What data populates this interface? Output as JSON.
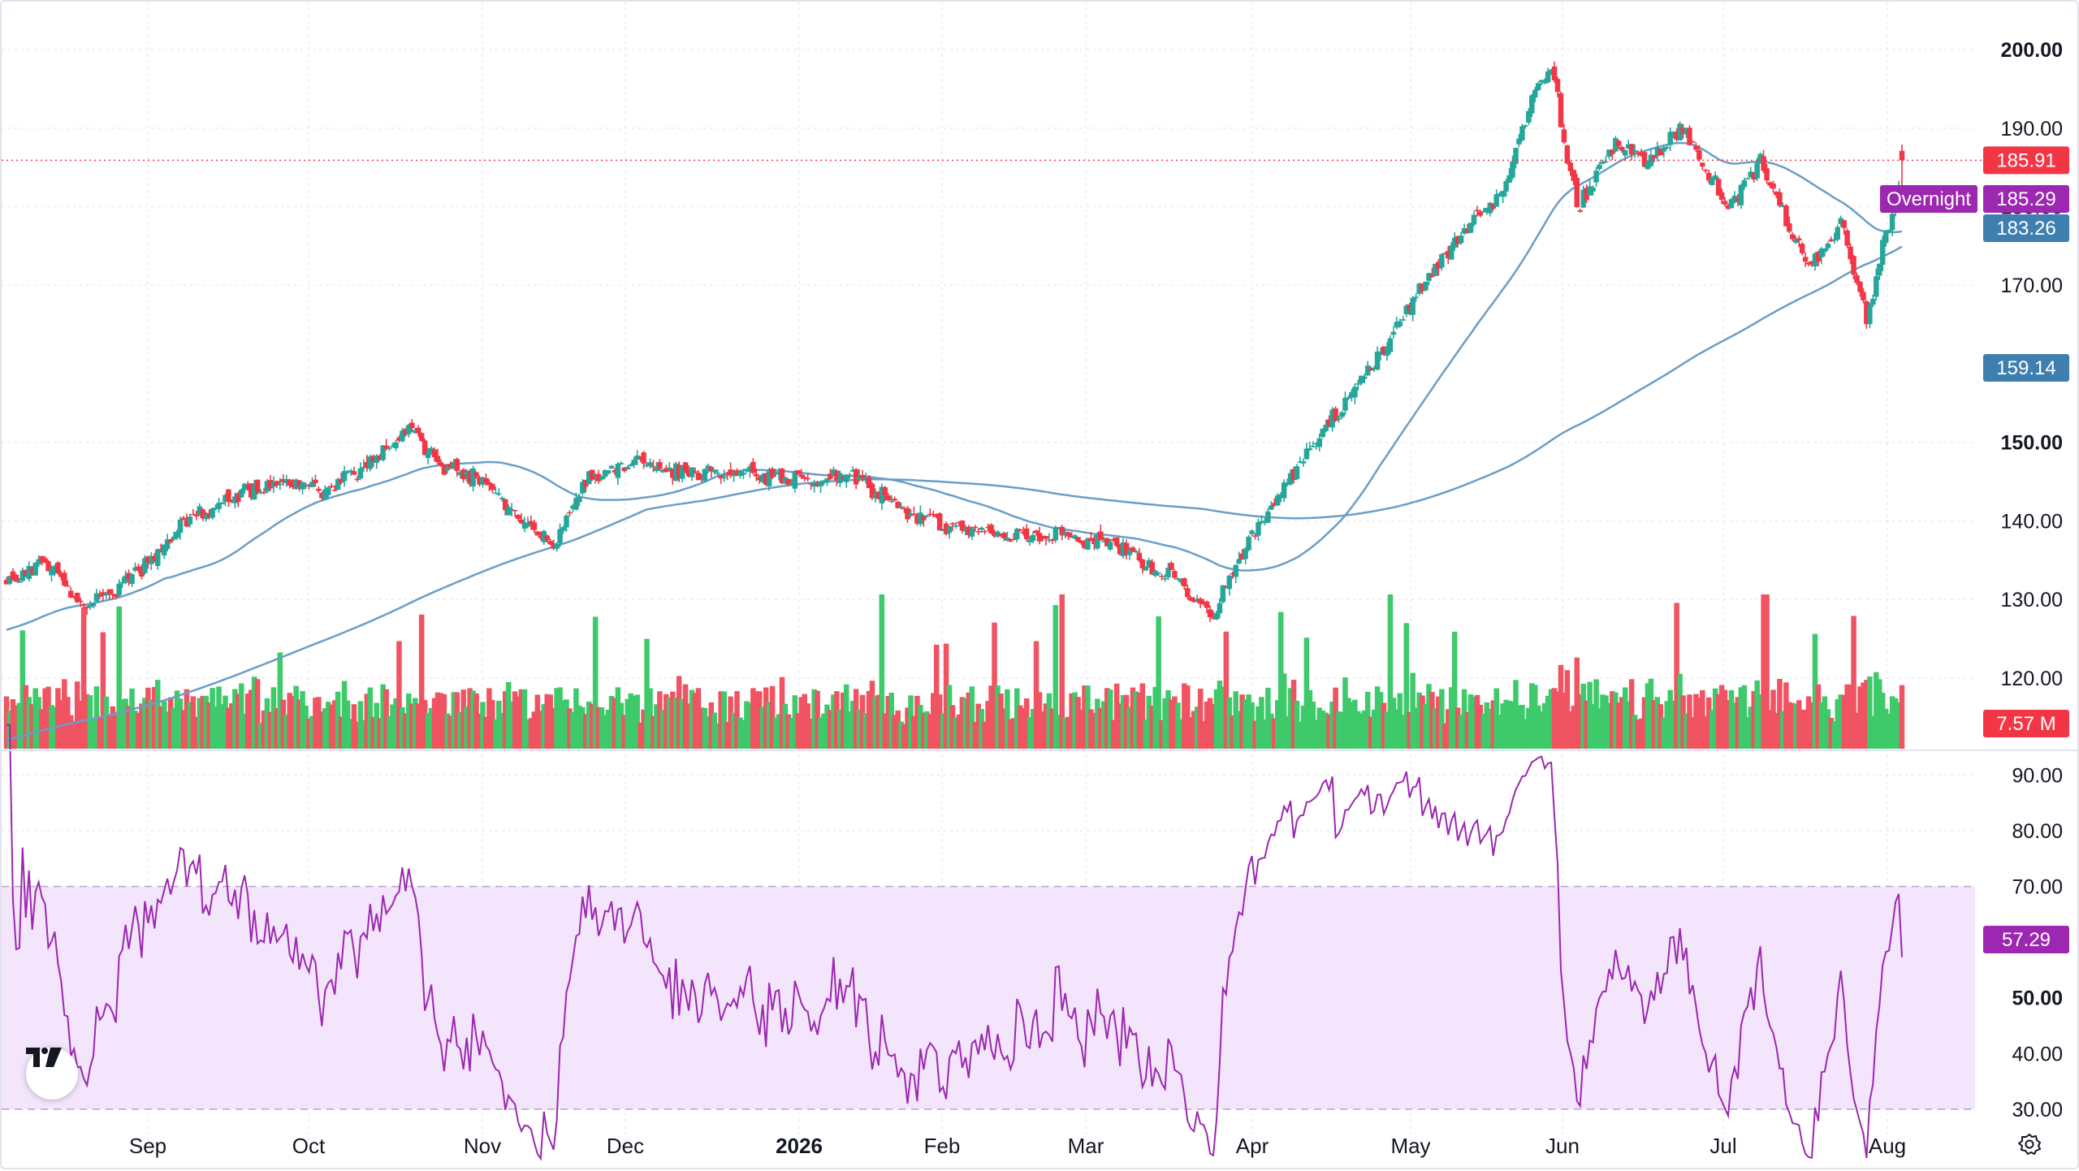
{
  "chart_data": [
    {
      "type": "candlestick",
      "title": "",
      "y_ticks": [
        "200.00",
        "190.00",
        "180.00",
        "170.00",
        "150.00",
        "140.00",
        "130.00",
        "120.00"
      ],
      "ylim": [
        111,
        203
      ],
      "x_labels": [
        "Sep",
        "Oct",
        "Nov",
        "Dec",
        "2026",
        "Feb",
        "Mar",
        "Apr",
        "May",
        "Jun",
        "Jul",
        "Aug"
      ],
      "overlays": [
        {
          "name": "MA50",
          "last": "183.26",
          "color": "#6a9ec7"
        },
        {
          "name": "MA200",
          "last": "159.14",
          "color": "#6a9ec7"
        }
      ],
      "last_price": "185.91",
      "overnight": {
        "label": "Overnight",
        "value": "185.29"
      },
      "volume_label": "7.57 M",
      "anchors": [
        [
          0,
          132
        ],
        [
          12,
          135
        ],
        [
          25,
          129
        ],
        [
          40,
          133
        ],
        [
          55,
          140
        ],
        [
          70,
          143
        ],
        [
          90,
          145
        ],
        [
          100,
          144
        ],
        [
          115,
          148
        ],
        [
          125,
          152
        ],
        [
          135,
          147
        ],
        [
          150,
          145
        ],
        [
          160,
          140
        ],
        [
          170,
          137
        ],
        [
          180,
          145
        ],
        [
          195,
          148
        ],
        [
          210,
          146
        ],
        [
          230,
          146
        ],
        [
          250,
          145
        ],
        [
          260,
          146
        ],
        [
          270,
          144
        ],
        [
          280,
          141
        ],
        [
          295,
          139
        ],
        [
          310,
          138
        ],
        [
          330,
          138
        ],
        [
          350,
          136
        ],
        [
          365,
          132
        ],
        [
          375,
          128
        ],
        [
          385,
          137
        ],
        [
          395,
          143
        ],
        [
          410,
          152
        ],
        [
          425,
          160
        ],
        [
          440,
          170
        ],
        [
          455,
          178
        ],
        [
          465,
          182
        ],
        [
          475,
          195
        ],
        [
          480,
          198
        ],
        [
          488,
          180
        ],
        [
          500,
          188
        ],
        [
          510,
          186
        ],
        [
          520,
          190
        ],
        [
          535,
          180
        ],
        [
          545,
          186
        ],
        [
          560,
          172
        ],
        [
          570,
          178
        ],
        [
          578,
          166
        ],
        [
          585,
          178
        ],
        [
          590,
          186
        ]
      ]
    },
    {
      "type": "line",
      "title": "",
      "y_ticks": [
        "90.00",
        "80.00",
        "70.00",
        "60.00",
        "50.00",
        "40.00",
        "30.00"
      ],
      "ylim": [
        24,
        94
      ],
      "band": [
        30,
        70
      ],
      "last_value": "57.29",
      "color": "#9c27b0"
    }
  ]
}
